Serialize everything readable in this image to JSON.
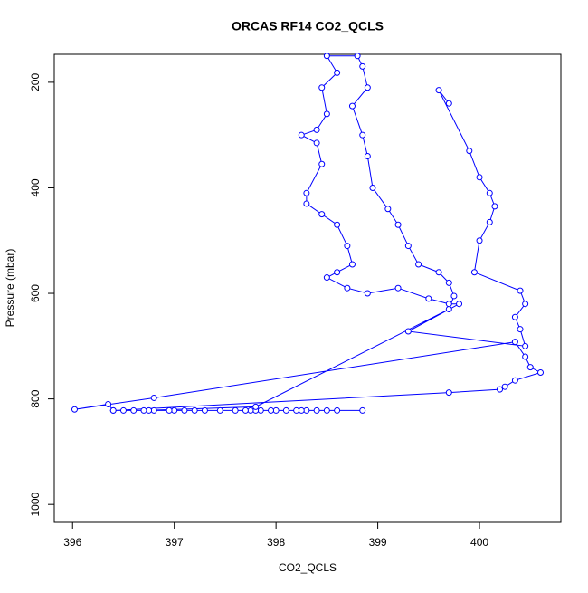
{
  "chart_data": {
    "type": "line",
    "title": "ORCAS RF14 CO2_QCLS",
    "x_label": "CO2_QCLS",
    "y_label": "Pressure (mbar)",
    "color": "#0000ff",
    "markers": true,
    "xlim": [
      395.82,
      400.8
    ],
    "ylim": [
      1034,
      147
    ],
    "xticks": [
      396,
      397,
      398,
      399,
      400
    ],
    "yticks": [
      200,
      400,
      600,
      800,
      1000
    ],
    "x": [
      398.85,
      398.6,
      398.5,
      398.4,
      398.3,
      398.25,
      398.2,
      398.1,
      398.0,
      397.95,
      397.85,
      397.8,
      397.75,
      397.7,
      397.6,
      397.45,
      397.3,
      397.2,
      397.1,
      397.0,
      396.95,
      396.8,
      396.75,
      396.6,
      396.5,
      396.4,
      396.35,
      396.02,
      396.8,
      400.35,
      400.45,
      400.5,
      400.6,
      400.35,
      400.25,
      400.2,
      399.7,
      396.4,
      396.7,
      397.8,
      399.7,
      399.75,
      399.7,
      399.6,
      399.4,
      399.3,
      399.2,
      399.1,
      398.95,
      398.9,
      398.85,
      398.75,
      398.9,
      398.85,
      398.8,
      398.5,
      398.6,
      398.45,
      398.5,
      398.4,
      398.25,
      398.4,
      398.45,
      398.3,
      398.3,
      398.45,
      398.6,
      398.7,
      398.75,
      398.6,
      398.5,
      398.7,
      398.9,
      399.2,
      399.5,
      399.7,
      399.8,
      399.3,
      400.45,
      400.4,
      400.35,
      400.45,
      400.4,
      399.95,
      400.0,
      400.1,
      400.15,
      400.1,
      400.0,
      399.9,
      399.6,
      399.7
    ],
    "y": [
      822,
      822,
      822,
      822,
      822,
      822,
      822,
      822,
      822,
      822,
      822,
      822,
      822,
      822,
      822,
      822,
      822,
      822,
      822,
      822,
      822,
      822,
      822,
      822,
      822,
      822,
      810,
      820,
      798,
      692,
      720,
      740,
      750,
      765,
      777,
      782,
      788,
      822,
      822,
      815,
      630,
      605,
      580,
      560,
      545,
      510,
      470,
      440,
      400,
      340,
      300,
      245,
      210,
      170,
      150,
      150,
      182,
      210,
      260,
      290,
      300,
      315,
      355,
      410,
      430,
      450,
      470,
      510,
      545,
      560,
      570,
      590,
      600,
      590,
      610,
      620,
      620,
      672,
      700,
      668,
      645,
      620,
      595,
      560,
      500,
      465,
      435,
      410,
      380,
      330,
      215,
      240
    ]
  }
}
